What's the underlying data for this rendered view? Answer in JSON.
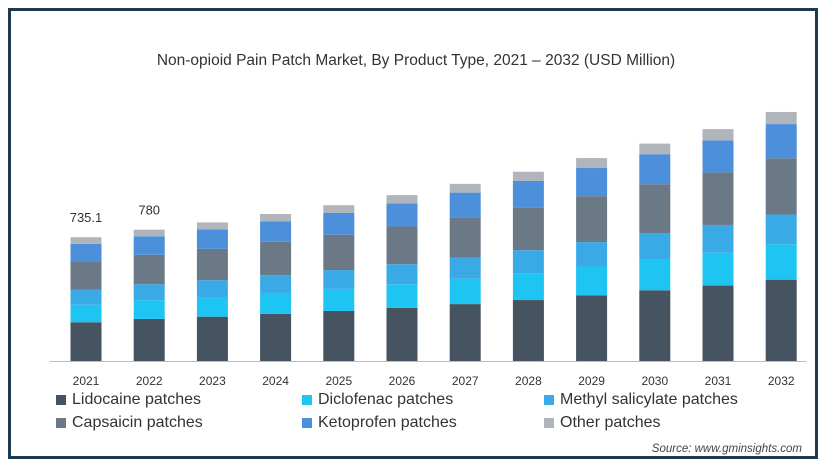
{
  "chart_data": {
    "type": "bar",
    "stacked": true,
    "title": "Non-opioid Pain Patch Market, By Product Type, 2021 – 2032 (USD Million)",
    "xlabel": "",
    "ylabel": "",
    "categories": [
      "2021",
      "2022",
      "2023",
      "2024",
      "2025",
      "2026",
      "2027",
      "2028",
      "2029",
      "2030",
      "2031",
      "2032"
    ],
    "series": [
      {
        "name": "Lidocaine patches",
        "color": "#465462",
        "values": [
          230,
          250,
          263,
          280,
          297,
          316,
          338,
          362,
          390,
          420,
          448,
          483
        ]
      },
      {
        "name": "Diclofenac patches",
        "color": "#1ec5f2",
        "values": [
          104,
          111,
          117,
          124,
          131,
          140,
          150,
          160,
          171,
          183,
          195,
          210
        ]
      },
      {
        "name": "Methyl salicylate patches",
        "color": "#3aaae6",
        "values": [
          90,
          95,
          100,
          106,
          112,
          119,
          127,
          136,
          145,
          155,
          165,
          177
        ]
      },
      {
        "name": "Capsaicin patches",
        "color": "#6b7986",
        "values": [
          164,
          175,
          186,
          198,
          210,
          224,
          239,
          255,
          273,
          292,
          312,
          334
        ]
      },
      {
        "name": "Ketoprofen patches",
        "color": "#4c8fdb",
        "values": [
          108,
          110,
          116,
          122,
          129,
          137,
          146,
          156,
          167,
          178,
          190,
          203
        ]
      },
      {
        "name": "Other patches",
        "color": "#b0b5bb",
        "values": [
          39,
          39,
          41,
          43,
          46,
          49,
          52,
          55,
          59,
          63,
          67,
          72
        ]
      }
    ],
    "data_labels": [
      {
        "category": "2021",
        "text": "735.1"
      },
      {
        "category": "2022",
        "text": "780"
      }
    ],
    "ylim": [
      0,
      1550
    ],
    "grid": false,
    "legend_position": "bottom",
    "axis_color": "#bbbbbb"
  },
  "source": "Source: www.gminsights.com"
}
